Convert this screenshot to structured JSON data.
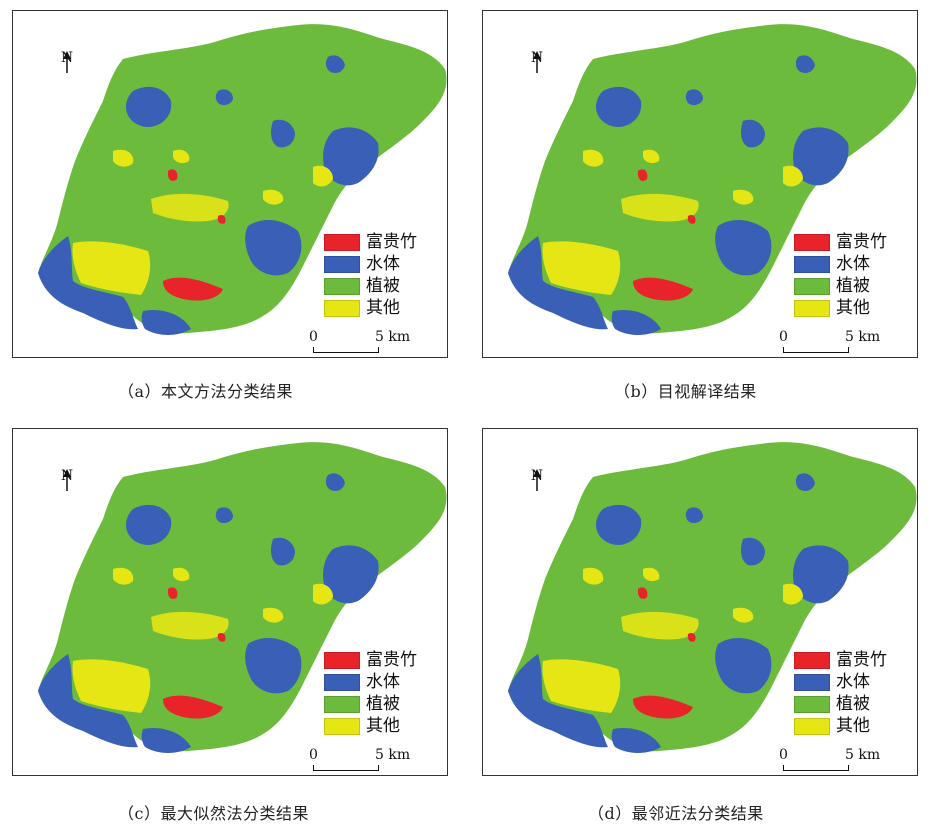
{
  "north_label": "N",
  "legend": [
    {
      "label": "富贵竹",
      "color": "#e8232a"
    },
    {
      "label": "水体",
      "color": "#3a5fb6"
    },
    {
      "label": "植被",
      "color": "#6cbb3c"
    },
    {
      "label": "其他",
      "color": "#e6e614"
    }
  ],
  "scale": {
    "start": "0",
    "end": "5 km"
  },
  "panels": [
    {
      "caption": "（a）本文方法分类结果"
    },
    {
      "caption": "（b）目视解译结果"
    },
    {
      "caption": "（c）最大似然法分类结果"
    },
    {
      "caption": "（d）最邻近法分类结果"
    }
  ]
}
